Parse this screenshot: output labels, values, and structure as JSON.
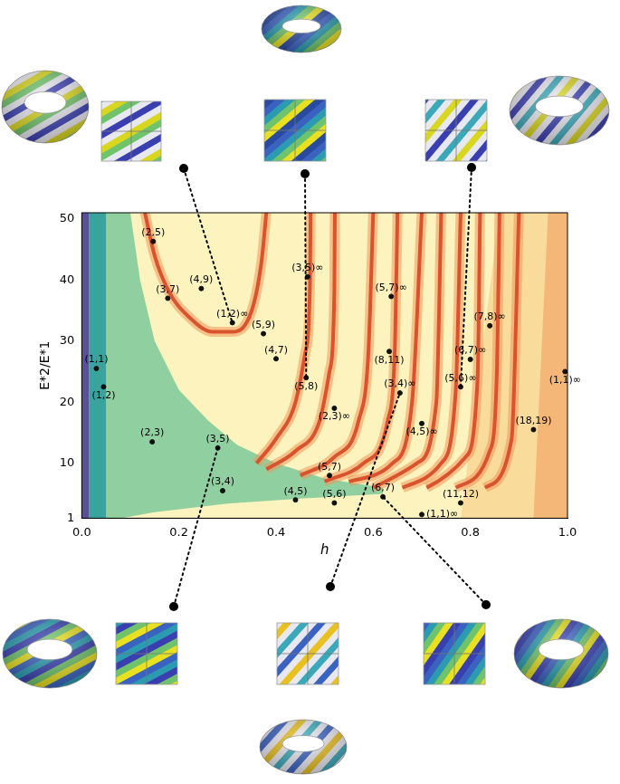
{
  "chart_data": {
    "type": "scatter",
    "x_label": "h",
    "y_label": "E*2/E*1",
    "xlim": [
      0,
      1
    ],
    "xticks": [
      {
        "value": 0,
        "label": "0.0"
      },
      {
        "value": 0.2,
        "label": "0.2"
      },
      {
        "value": 0.4,
        "label": "0.4"
      },
      {
        "value": 0.6,
        "label": "0.6"
      },
      {
        "value": 0.8,
        "label": "0.8"
      },
      {
        "value": 1,
        "label": "1.0"
      }
    ],
    "ylim": [
      1,
      51
    ],
    "yticks": [
      1,
      10,
      20,
      30,
      40,
      50
    ],
    "grid": false,
    "color": "#111111",
    "marker": "circle",
    "points": [
      {
        "label": "(2,5)",
        "x": 0.147,
        "y": 46.3
      },
      {
        "label": "(3,7)",
        "x": 0.177,
        "y": 37
      },
      {
        "label": "(4,9)",
        "x": 0.246,
        "y": 38.6
      },
      {
        "label": "(1,2)∞",
        "x": 0.31,
        "y": 33
      },
      {
        "label": "(5,9)",
        "x": 0.374,
        "y": 31.2
      },
      {
        "label": "(4,7)",
        "x": 0.4,
        "y": 27.1
      },
      {
        "label": "(3,5)∞",
        "x": 0.465,
        "y": 40.5
      },
      {
        "label": "(5,8)",
        "x": 0.462,
        "y": 24
      },
      {
        "label": "(5,7)∞",
        "x": 0.637,
        "y": 37.3
      },
      {
        "label": "(8,11)",
        "x": 0.633,
        "y": 28.3
      },
      {
        "label": "(3,4)∞",
        "x": 0.655,
        "y": 21.5
      },
      {
        "label": "(2,3)∞",
        "x": 0.52,
        "y": 19
      },
      {
        "label": "(5,6)∞",
        "x": 0.78,
        "y": 22.5
      },
      {
        "label": "(6,7)∞",
        "x": 0.8,
        "y": 27
      },
      {
        "label": "(7,8)∞",
        "x": 0.84,
        "y": 32.5
      },
      {
        "label": "(1,1)∞",
        "x": 0.995,
        "y": 25
      },
      {
        "label": "(18,19)",
        "x": 0.93,
        "y": 15.5
      },
      {
        "label": "(4,5)∞",
        "x": 0.7,
        "y": 16.5
      },
      {
        "label": "(1,1)",
        "x": 0.03,
        "y": 25.5
      },
      {
        "label": "(1,2)",
        "x": 0.045,
        "y": 22.5
      },
      {
        "label": "(2,3)",
        "x": 0.145,
        "y": 13.5
      },
      {
        "label": "(3,5)",
        "x": 0.28,
        "y": 12.5
      },
      {
        "label": "(3,4)",
        "x": 0.29,
        "y": 5.5
      },
      {
        "label": "(5,7)",
        "x": 0.51,
        "y": 8
      },
      {
        "label": "(4,5)",
        "x": 0.44,
        "y": 4
      },
      {
        "label": "(5,6)",
        "x": 0.52,
        "y": 3.5
      },
      {
        "label": "(6,7)",
        "x": 0.62,
        "y": 4.5
      },
      {
        "label": "(11,12)",
        "x": 0.78,
        "y": 3.5
      },
      {
        "label": "(1,1)∞",
        "x": 0.7,
        "y": 1.6
      }
    ],
    "regions": [
      {
        "color": "#fcf3bf",
        "x": [
          0,
          1,
          1,
          0
        ],
        "y": [
          1,
          1,
          51,
          51
        ]
      },
      {
        "color": "#f9dc9c",
        "x": [
          0.78,
          1,
          1,
          0.86
        ],
        "y": [
          1,
          1,
          51,
          51
        ]
      },
      {
        "color": "#f5b777",
        "x": [
          0.93,
          1,
          1,
          0.96
        ],
        "y": [
          1,
          1,
          51,
          51
        ]
      },
      {
        "color": "#8fcfa0",
        "x": [
          0.05,
          0.1,
          0.12,
          0.15,
          0.2,
          0.26,
          0.32,
          0.4,
          0.5,
          0.62,
          0.62,
          0.45,
          0.3,
          0.15,
          0.08,
          0.05
        ],
        "y": [
          51,
          51,
          40,
          30,
          22,
          17,
          13,
          10,
          7.5,
          6,
          5,
          4.2,
          3.4,
          2,
          1,
          1
        ]
      },
      {
        "color": "#3aa39e",
        "x": [
          0.015,
          0.05,
          0.05,
          0.015
        ],
        "y": [
          1,
          1,
          51,
          51
        ]
      },
      {
        "color": "#5a4f9c",
        "x": [
          0,
          0.015,
          0.015,
          0
        ],
        "y": [
          1,
          1,
          51,
          51
        ]
      }
    ],
    "ridges": [
      {
        "color": "#d9532f",
        "x": [
          0.13,
          0.15,
          0.18,
          0.22,
          0.27,
          0.31,
          0.35,
          0.37,
          0.38
        ],
        "y": [
          51,
          44,
          38,
          34,
          31.5,
          31.5,
          35,
          43,
          51
        ]
      },
      {
        "color": "#d9532f",
        "x": [
          0.36,
          0.4,
          0.44,
          0.46,
          0.47,
          0.471
        ],
        "y": [
          10,
          14,
          20,
          28,
          40,
          51
        ]
      },
      {
        "color": "#d9532f",
        "x": [
          0.38,
          0.44,
          0.49,
          0.51,
          0.52,
          0.521
        ],
        "y": [
          9,
          12,
          17,
          25,
          38,
          51
        ]
      },
      {
        "color": "#d9532f",
        "x": [
          0.45,
          0.52,
          0.57,
          0.59,
          0.6
        ],
        "y": [
          8,
          11,
          17,
          28,
          51
        ]
      },
      {
        "color": "#d9532f",
        "x": [
          0.5,
          0.58,
          0.63,
          0.645,
          0.65
        ],
        "y": [
          7,
          10,
          17,
          30,
          51
        ]
      },
      {
        "color": "#d9532f",
        "x": [
          0.55,
          0.64,
          0.68,
          0.7
        ],
        "y": [
          7,
          10,
          20,
          51
        ]
      },
      {
        "color": "#d9532f",
        "x": [
          0.6,
          0.69,
          0.73,
          0.74
        ],
        "y": [
          6,
          10,
          20,
          51
        ]
      },
      {
        "color": "#d9532f",
        "x": [
          0.66,
          0.74,
          0.77,
          0.78
        ],
        "y": [
          6,
          10,
          22,
          51
        ]
      },
      {
        "color": "#d9532f",
        "x": [
          0.71,
          0.79,
          0.815,
          0.82
        ],
        "y": [
          6,
          11,
          24,
          51
        ]
      },
      {
        "color": "#d9532f",
        "x": [
          0.77,
          0.84,
          0.855,
          0.86
        ],
        "y": [
          6,
          12,
          26,
          51
        ]
      },
      {
        "color": "#d9532f",
        "x": [
          0.83,
          0.885,
          0.9
        ],
        "y": [
          6,
          14,
          51
        ]
      }
    ],
    "insets": [
      {
        "point": "(1,2)∞",
        "colors": [
          "#e8e8f0",
          "#3a3fb0",
          "#e8e8f0",
          "#d9d620",
          "#6fc36a"
        ]
      },
      {
        "point": "(5,8)",
        "colors": [
          "#3a62c0",
          "#2a9bb0",
          "#6fc36a",
          "#e8e020",
          "#2a4aa0"
        ]
      },
      {
        "point": "(5,6)∞",
        "colors": [
          "#e8e8f0",
          "#3a3fb0",
          "#e8e8f0",
          "#3aa8b8",
          "#e8e8f0",
          "#d9d620"
        ]
      },
      {
        "point": "(3,5)",
        "colors": [
          "#2a9bb0",
          "#3a3fb0",
          "#6fc36a",
          "#e8e020",
          "#3a62c0"
        ]
      },
      {
        "point": "(3,4)∞",
        "colors": [
          "#e8e8f0",
          "#3a62c0",
          "#e8e8f0",
          "#e8c020",
          "#e8e8f0",
          "#3aa8b8"
        ]
      },
      {
        "point": "(6,7)",
        "colors": [
          "#3a3fb0",
          "#3a62c0",
          "#2a9bb0",
          "#6fc36a",
          "#e8e020"
        ]
      }
    ]
  }
}
